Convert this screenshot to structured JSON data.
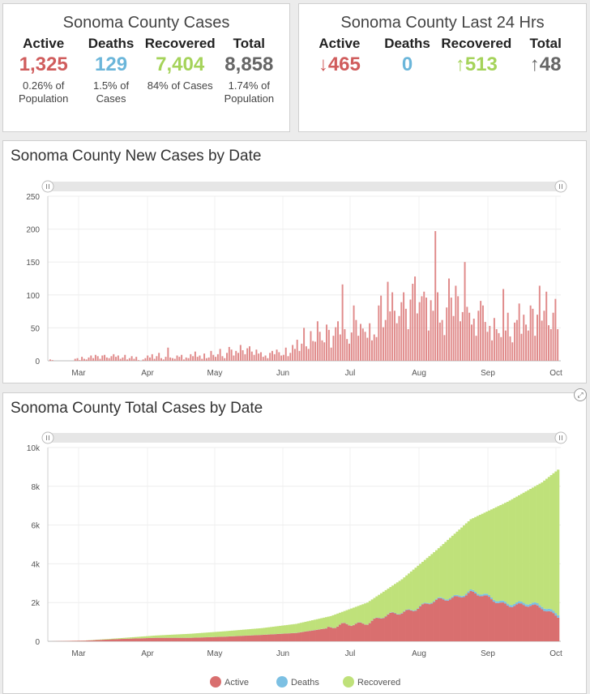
{
  "cases_panel": {
    "title": "Sonoma County Cases",
    "stats": [
      {
        "label": "Active",
        "value": "1,325",
        "sub": [
          "0.26% of",
          "Population"
        ],
        "color": "#d05d5d"
      },
      {
        "label": "Deaths",
        "value": "129",
        "sub": [
          "1.5% of",
          "Cases"
        ],
        "color": "#6bb6da"
      },
      {
        "label": "Recovered",
        "value": "7,404",
        "sub": [
          "84% of Cases"
        ],
        "color": "#a5d35a"
      },
      {
        "label": "Total",
        "value": "8,858",
        "sub": [
          "1.74% of",
          "Population"
        ],
        "color": "#666666"
      }
    ]
  },
  "last24_panel": {
    "title": "Sonoma County Last 24 Hrs",
    "stats": [
      {
        "label": "Active",
        "value": "↓465",
        "color": "#d05d5d"
      },
      {
        "label": "Deaths",
        "value": "0",
        "color": "#6bb6da"
      },
      {
        "label": "Recovered",
        "value": "↑513",
        "color": "#a5d35a"
      },
      {
        "label": "Total",
        "value": "↑48",
        "color": "#666666"
      }
    ]
  },
  "chart_data": [
    {
      "type": "bar",
      "title": "Sonoma County New Cases by Date",
      "ylim": [
        0,
        250
      ],
      "yticks": [
        "0",
        "50",
        "100",
        "150",
        "200",
        "250"
      ],
      "month_labels": [
        "Mar",
        "Apr",
        "May",
        "Jun",
        "Jul",
        "Aug",
        "Sep",
        "Oct"
      ],
      "color": "#e08a8a",
      "grid": true,
      "series": [
        {
          "values": [
            2,
            1,
            0,
            0,
            0,
            0,
            0,
            0,
            0,
            0,
            0,
            3,
            4,
            1,
            6,
            3,
            2,
            5,
            8,
            4,
            9,
            7,
            3,
            8,
            9,
            5,
            4,
            7,
            10,
            6,
            8,
            3,
            5,
            9,
            2,
            4,
            7,
            3,
            6,
            1,
            0,
            2,
            4,
            8,
            5,
            10,
            3,
            7,
            12,
            4,
            2,
            6,
            20,
            5,
            4,
            3,
            8,
            6,
            9,
            2,
            5,
            4,
            10,
            7,
            14,
            6,
            8,
            3,
            11,
            4,
            5,
            15,
            9,
            6,
            10,
            18,
            7,
            4,
            12,
            21,
            17,
            8,
            15,
            12,
            24,
            16,
            10,
            19,
            22,
            14,
            9,
            17,
            11,
            13,
            6,
            8,
            4,
            12,
            15,
            10,
            17,
            13,
            8,
            9,
            20,
            7,
            12,
            24,
            18,
            32,
            15,
            26,
            50,
            22,
            18,
            45,
            30,
            29,
            60,
            44,
            31,
            28,
            55,
            47,
            20,
            38,
            51,
            60,
            40,
            116,
            48,
            33,
            26,
            43,
            84,
            62,
            38,
            56,
            49,
            44,
            35,
            57,
            31,
            40,
            36,
            84,
            99,
            51,
            62,
            120,
            75,
            104,
            76,
            57,
            68,
            89,
            104,
            79,
            48,
            93,
            117,
            128,
            72,
            89,
            98,
            105,
            96,
            46,
            92,
            76,
            197,
            104,
            58,
            62,
            39,
            81,
            125,
            96,
            68,
            114,
            98,
            60,
            74,
            150,
            82,
            73,
            55,
            64,
            38,
            76,
            91,
            84,
            59,
            44,
            53,
            31,
            65,
            48,
            42,
            36,
            109,
            46,
            73,
            37,
            28,
            58,
            62,
            87,
            41,
            70,
            55,
            46,
            84,
            79,
            38,
            70,
            114,
            61,
            76,
            105,
            54,
            48,
            73,
            94,
            48
          ]
        }
      ]
    },
    {
      "type": "area",
      "title": "Sonoma County Total Cases by Date",
      "ylim": [
        0,
        10000
      ],
      "yticks": [
        "0",
        "2k",
        "4k",
        "6k",
        "8k",
        "10k"
      ],
      "month_labels": [
        "Mar",
        "Apr",
        "May",
        "Jun",
        "Jul",
        "Aug",
        "Sep",
        "Oct"
      ],
      "legend": [
        {
          "name": "Active",
          "color": "#d96f6f"
        },
        {
          "name": "Deaths",
          "color": "#7cc0e3"
        },
        {
          "name": "Recovered",
          "color": "#bfe17a"
        }
      ],
      "legend_position": "bottom-center",
      "keypoints": {
        "index": [
          0,
          15,
          30,
          46,
          61,
          76,
          92,
          107,
          122,
          138,
          153,
          168,
          183,
          199,
          214,
          221
        ],
        "total": [
          0,
          40,
          160,
          300,
          390,
          520,
          680,
          900,
          1300,
          2000,
          3200,
          4700,
          6300,
          7200,
          8200,
          8858
        ],
        "active": [
          0,
          35,
          120,
          180,
          180,
          240,
          330,
          430,
          700,
          1000,
          1500,
          2050,
          2500,
          1900,
          1750,
          1325
        ],
        "deaths": [
          0,
          0,
          1,
          2,
          3,
          4,
          5,
          6,
          8,
          12,
          25,
          45,
          80,
          100,
          118,
          129
        ]
      }
    }
  ]
}
